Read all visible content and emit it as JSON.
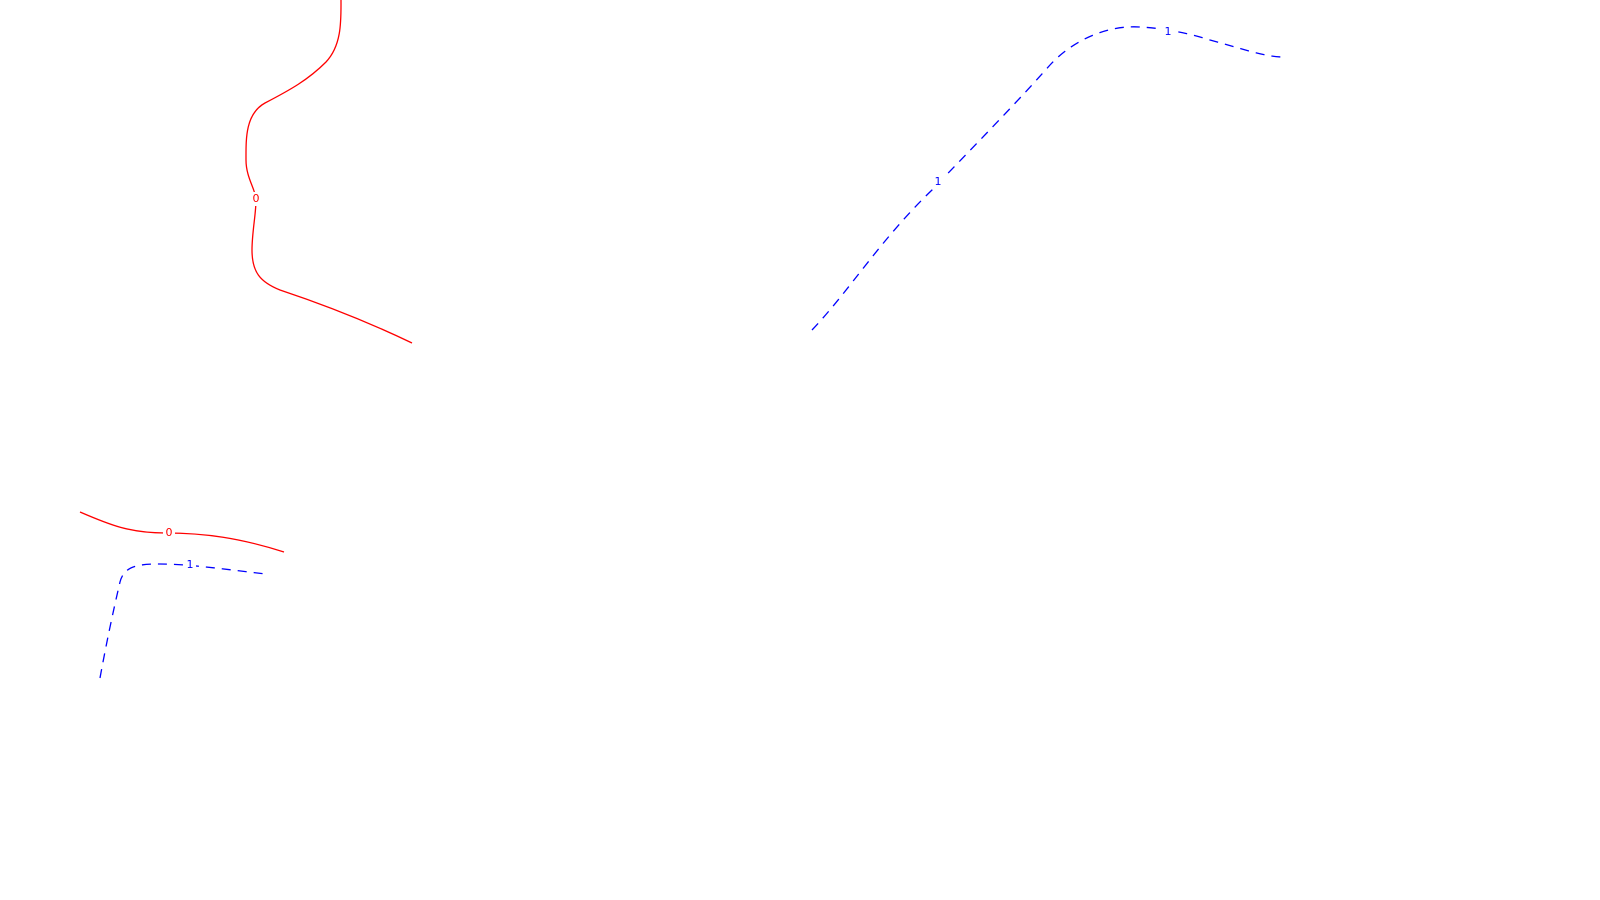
{
  "map": {
    "background_color": "#ffffff",
    "contours": [
      {
        "id": "contour-0-north",
        "level_label": "0",
        "style": "solid",
        "color": "#ff0000"
      },
      {
        "id": "contour-0-west",
        "level_label": "0",
        "style": "solid",
        "color": "#ff0000"
      },
      {
        "id": "contour-neg1-east",
        "level_label": "1",
        "style": "dashed",
        "color": "#0000ff",
        "labels": [
          "1",
          "1"
        ]
      },
      {
        "id": "contour-neg1-west",
        "level_label": "1",
        "style": "dashed",
        "color": "#0000ff"
      }
    ]
  }
}
